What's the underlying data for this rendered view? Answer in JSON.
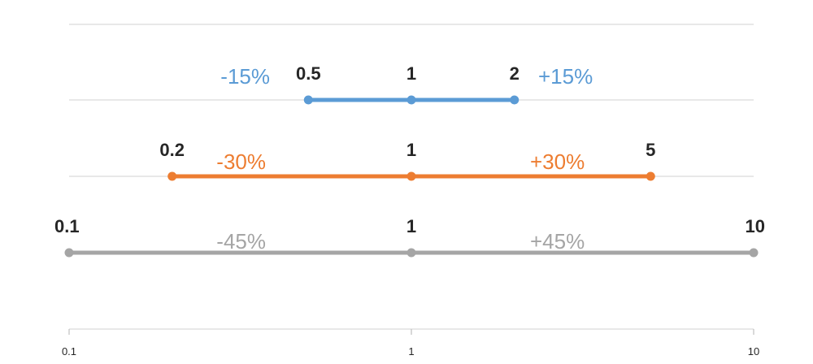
{
  "chart_data": {
    "type": "line",
    "xscale": "log",
    "xlim": [
      0.1,
      10
    ],
    "xticks": [
      0.1,
      1,
      10
    ],
    "xtick_labels": [
      "0.1",
      "1",
      "10"
    ],
    "grid": true,
    "series": [
      {
        "values": [
          0.5,
          1,
          2
        ],
        "labels": [
          "0.5",
          "1",
          "2"
        ],
        "left_pct": "-15%",
        "right_pct": "+15%",
        "color": "#5b9bd5"
      },
      {
        "values": [
          0.2,
          1,
          5
        ],
        "labels": [
          "0.2",
          "1",
          "5"
        ],
        "left_pct": "-30%",
        "right_pct": "+30%",
        "color": "#ed7d31"
      },
      {
        "values": [
          0.1,
          1,
          10
        ],
        "labels": [
          "0.1",
          "1",
          "10"
        ],
        "left_pct": "-45%",
        "right_pct": "+45%",
        "color": "#a5a5a5"
      }
    ]
  }
}
